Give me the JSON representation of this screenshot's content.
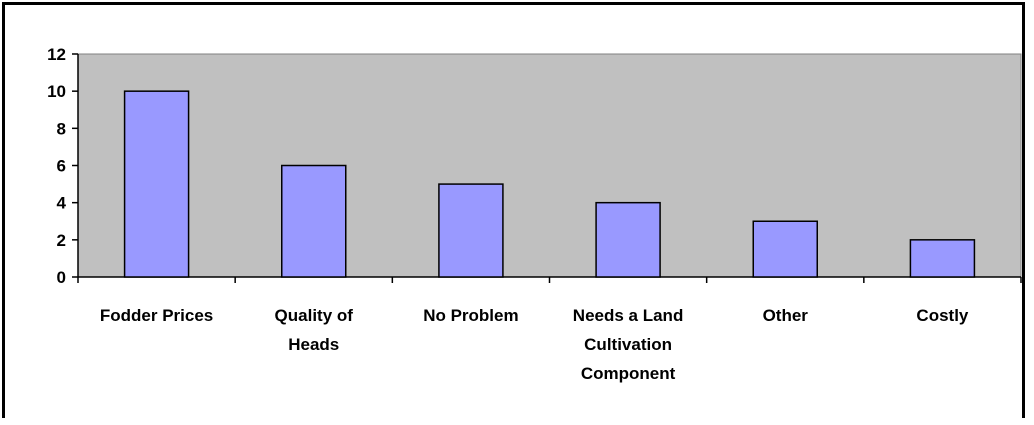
{
  "chart_data": {
    "type": "bar",
    "categories": [
      [
        "Fodder Prices"
      ],
      [
        "Quality of",
        "Heads"
      ],
      [
        "No Problem"
      ],
      [
        "Needs a Land",
        "Cultivation",
        "Component"
      ],
      [
        "Other"
      ],
      [
        "Costly"
      ]
    ],
    "values": [
      10,
      6,
      5,
      4,
      3,
      2
    ],
    "yticks": [
      "0",
      "2",
      "4",
      "6",
      "8",
      "10",
      "12"
    ],
    "ylim": [
      0,
      12
    ],
    "grid": false,
    "legend": "none",
    "colors": {
      "plot_background": "#c0c0c0",
      "bar_fill": "#9999ff",
      "bar_stroke": "#000000",
      "axis": "#000000"
    }
  }
}
